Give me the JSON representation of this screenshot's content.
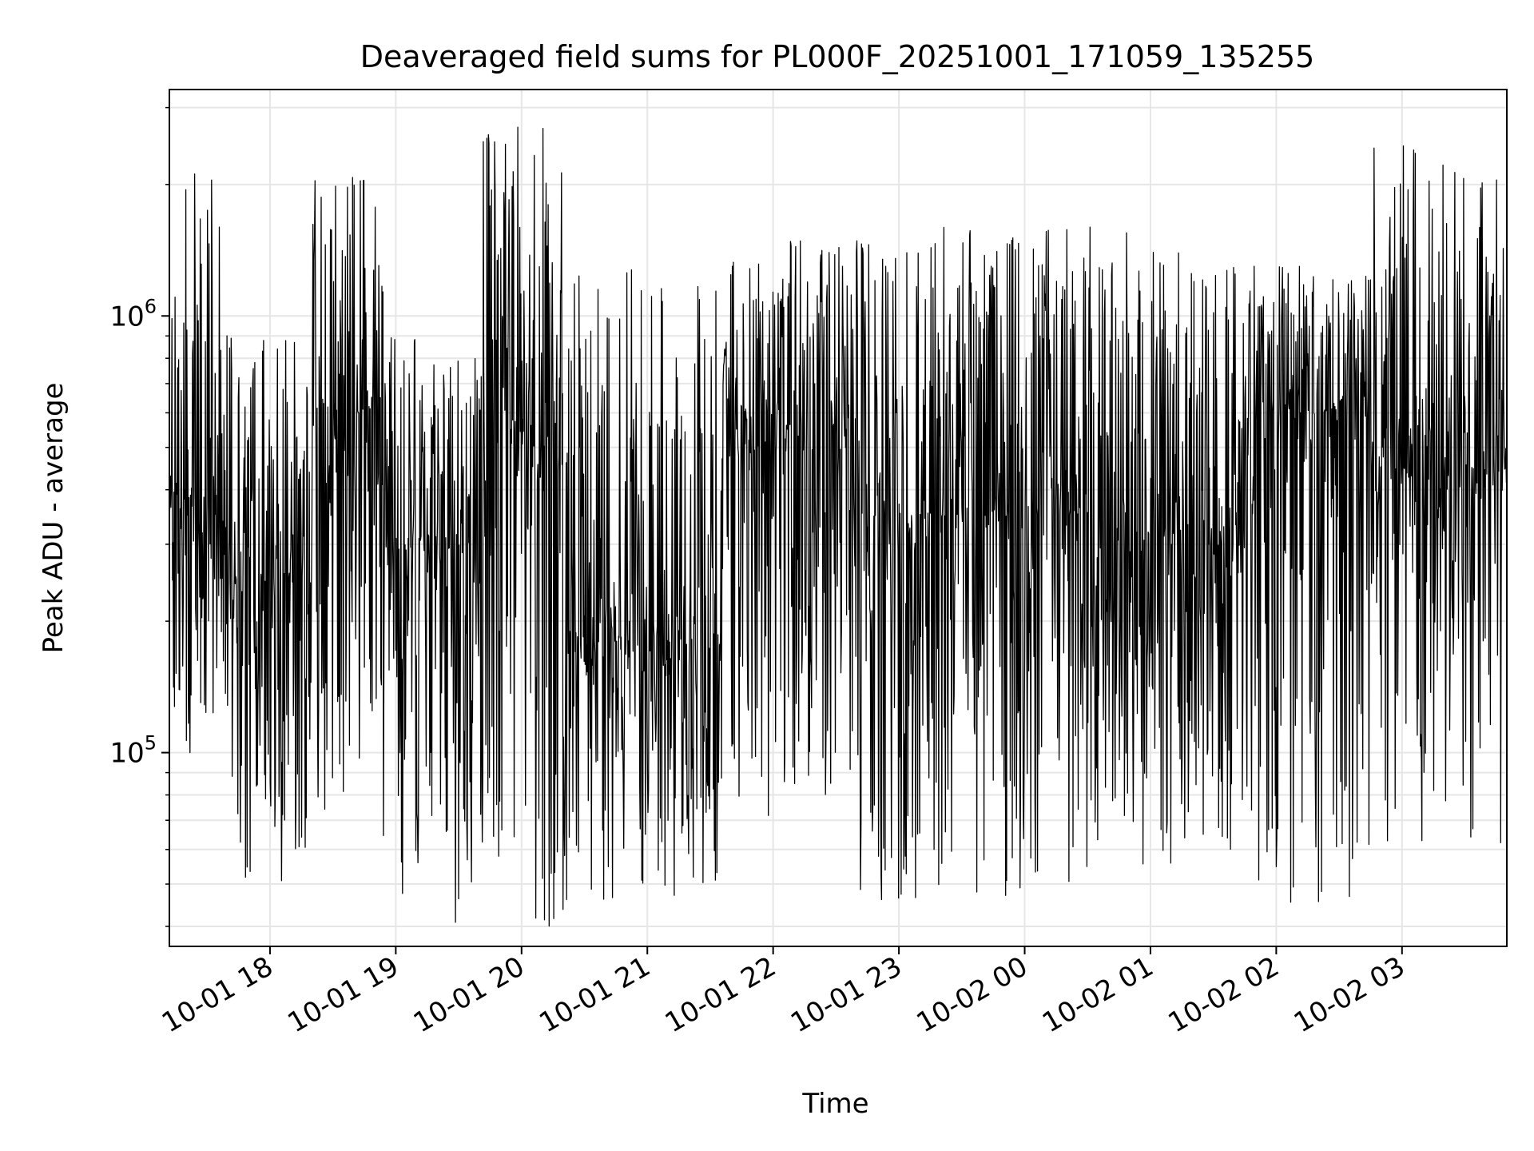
{
  "chart_data": {
    "type": "line",
    "title": "Deaveraged field sums for PL000F_20251001_171059_135255",
    "xlabel": "Time",
    "ylabel": "Peak ADU - average",
    "yscale": "log",
    "ylim": [
      36000,
      3300000
    ],
    "xlim": [
      "2025-10-01 17:12",
      "2025-10-02 03:50"
    ],
    "grid": true,
    "line_color": "#000000",
    "grid_color": "#e6e6e6",
    "xticks": [
      {
        "value": "2025-10-01 18:00",
        "label": "10-01 18"
      },
      {
        "value": "2025-10-01 19:00",
        "label": "10-01 19"
      },
      {
        "value": "2025-10-01 20:00",
        "label": "10-01 20"
      },
      {
        "value": "2025-10-01 21:00",
        "label": "10-01 21"
      },
      {
        "value": "2025-10-01 22:00",
        "label": "10-01 22"
      },
      {
        "value": "2025-10-01 23:00",
        "label": "10-01 23"
      },
      {
        "value": "2025-10-02 00:00",
        "label": "10-02 00"
      },
      {
        "value": "2025-10-02 01:00",
        "label": "10-02 01"
      },
      {
        "value": "2025-10-02 02:00",
        "label": "10-02 02"
      },
      {
        "value": "2025-10-02 03:00",
        "label": "10-02 03"
      }
    ],
    "yticks_major": [
      {
        "value": 100000,
        "base": "10",
        "exp": "5"
      },
      {
        "value": 1000000,
        "base": "10",
        "exp": "6"
      }
    ],
    "yticks_minor": [
      40000,
      50000,
      60000,
      70000,
      80000,
      90000,
      200000,
      300000,
      400000,
      500000,
      600000,
      700000,
      800000,
      900000,
      2000000,
      3000000
    ],
    "series_profile": {
      "description_of_trend": "dense oscillating series; local envelopes per time window",
      "windows": [
        {
          "start": "2025-10-01 17:12",
          "end": "2025-10-01 17:40",
          "low": 100000,
          "high": 2200000,
          "typical": 400000
        },
        {
          "start": "2025-10-01 17:40",
          "end": "2025-10-01 18:20",
          "low": 50000,
          "high": 900000,
          "typical": 250000
        },
        {
          "start": "2025-10-01 18:20",
          "end": "2025-10-01 18:55",
          "low": 60000,
          "high": 2100000,
          "typical": 600000
        },
        {
          "start": "2025-10-01 18:55",
          "end": "2025-10-01 19:40",
          "low": 40000,
          "high": 900000,
          "typical": 300000
        },
        {
          "start": "2025-10-01 19:40",
          "end": "2025-10-01 20:20",
          "low": 40000,
          "high": 2800000,
          "typical": 550000
        },
        {
          "start": "2025-10-01 20:20",
          "end": "2025-10-01 21:35",
          "low": 45000,
          "high": 1300000,
          "typical": 180000
        },
        {
          "start": "2025-10-01 21:35",
          "end": "2025-10-01 22:40",
          "low": 70000,
          "high": 1500000,
          "typical": 550000
        },
        {
          "start": "2025-10-01 22:40",
          "end": "2025-10-02 00:30",
          "low": 45000,
          "high": 1600000,
          "typical": 350000
        },
        {
          "start": "2025-10-02 00:30",
          "end": "2025-10-02 01:45",
          "low": 55000,
          "high": 1600000,
          "typical": 300000
        },
        {
          "start": "2025-10-02 01:45",
          "end": "2025-10-02 02:45",
          "low": 45000,
          "high": 1300000,
          "typical": 600000
        },
        {
          "start": "2025-10-02 02:45",
          "end": "2025-10-02 03:50",
          "low": 60000,
          "high": 2500000,
          "typical": 450000
        }
      ]
    }
  }
}
